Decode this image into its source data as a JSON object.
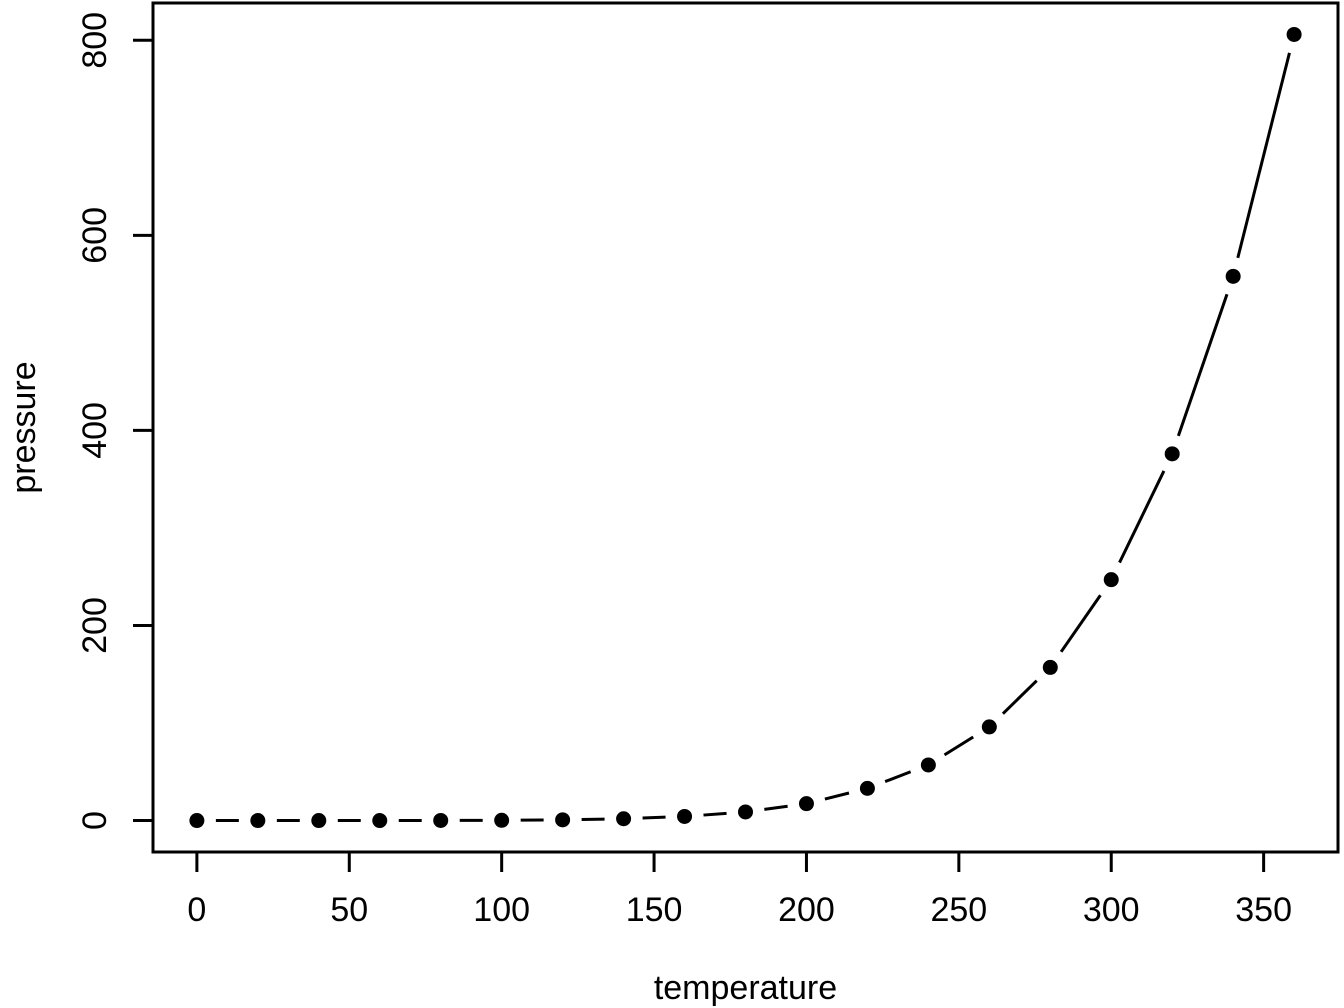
{
  "chart_data": {
    "type": "line",
    "subtype": "points-with-gapped-segments",
    "title": "",
    "xlabel": "temperature",
    "ylabel": "pressure",
    "x": [
      0,
      20,
      40,
      60,
      80,
      100,
      120,
      140,
      160,
      180,
      200,
      220,
      240,
      260,
      280,
      300,
      320,
      340,
      360
    ],
    "y": [
      0.0002,
      0.0012,
      0.006,
      0.03,
      0.09,
      0.27,
      0.75,
      1.85,
      4.2,
      8.8,
      17.3,
      33,
      57,
      96,
      157,
      247,
      376,
      558,
      806
    ],
    "x_ticks": [
      "0",
      "50",
      "100",
      "150",
      "200",
      "250",
      "300",
      "350"
    ],
    "x_tick_values": [
      0,
      50,
      100,
      150,
      200,
      250,
      300,
      350
    ],
    "y_ticks": [
      "0",
      "200",
      "400",
      "600",
      "800"
    ],
    "y_tick_values": [
      0,
      200,
      400,
      600,
      800
    ],
    "xlim": [
      0,
      360
    ],
    "ylim": [
      0.0002,
      806
    ],
    "legend": null,
    "grid": false,
    "colors": {
      "foreground": "#000000",
      "background": "#ffffff"
    }
  }
}
